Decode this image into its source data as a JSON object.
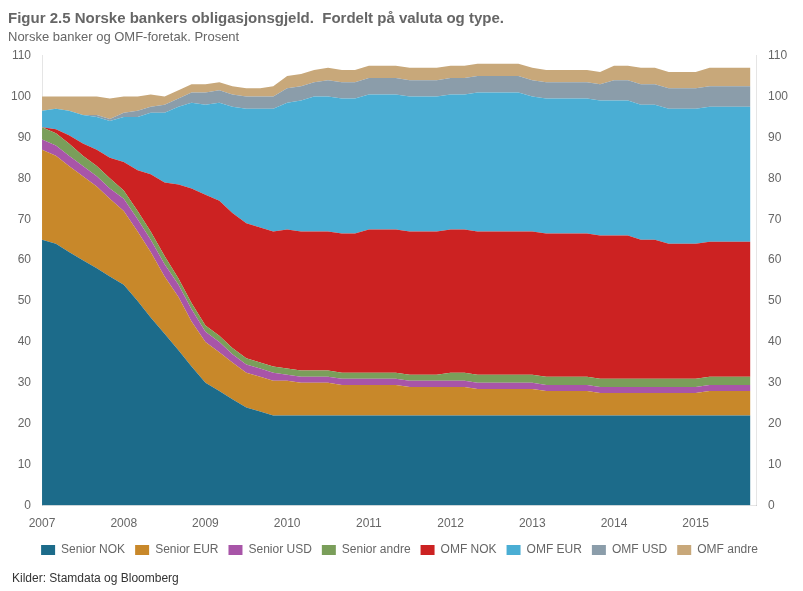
{
  "chart_data": {
    "type": "area",
    "stacked": true,
    "title": "Figur 2.5 Norske bankers obligasjonsgjeld.  Fordelt på valuta og type.",
    "subtitle": "Norske banker og OMF-foretak. Prosent",
    "annotations": [
      "Kilder: Stamdata og Bloomberg"
    ],
    "x": [
      2007.0,
      2007.17,
      2007.33,
      2007.5,
      2007.67,
      2007.83,
      2008.0,
      2008.17,
      2008.33,
      2008.5,
      2008.67,
      2008.83,
      2009.0,
      2009.17,
      2009.33,
      2009.5,
      2009.67,
      2009.83,
      2010.0,
      2010.17,
      2010.33,
      2010.5,
      2010.67,
      2010.83,
      2011.0,
      2011.17,
      2011.33,
      2011.5,
      2011.67,
      2011.83,
      2012.0,
      2012.17,
      2012.33,
      2012.5,
      2012.67,
      2012.83,
      2013.0,
      2013.17,
      2013.33,
      2013.5,
      2013.67,
      2013.83,
      2014.0,
      2014.17,
      2014.33,
      2014.5,
      2014.67,
      2014.83,
      2015.0,
      2015.17,
      2015.33,
      2015.5,
      2015.67
    ],
    "series": [
      {
        "name": "Senior NOK",
        "color": "#1c6b8a",
        "values": [
          65,
          64,
          62,
          60,
          58,
          56,
          54,
          50,
          46,
          42,
          38,
          34,
          30,
          28,
          26,
          24,
          23,
          22,
          22,
          22,
          22,
          22,
          22,
          22,
          22,
          22,
          22,
          22,
          22,
          22,
          22,
          22,
          22,
          22,
          22,
          22,
          22,
          22,
          22,
          22,
          22,
          22,
          22,
          22,
          22,
          22,
          22,
          22,
          22,
          22,
          22,
          22,
          22
        ]
      },
      {
        "name": "Senior EUR",
        "color": "#c8882a",
        "values": [
          22,
          21.5,
          21,
          20.5,
          20,
          19,
          18,
          17,
          16,
          14,
          13,
          11,
          10,
          9.5,
          9,
          8.5,
          8.5,
          8.5,
          8.5,
          8,
          8,
          8,
          7.5,
          7.5,
          7.5,
          7.5,
          7.5,
          7,
          7,
          7,
          7,
          7,
          6.5,
          6.5,
          6.5,
          6.5,
          6.5,
          6,
          6,
          6,
          6,
          5.5,
          5.5,
          5.5,
          5.5,
          5.5,
          5.5,
          5.5,
          5.5,
          6,
          6,
          6,
          6
        ]
      },
      {
        "name": "Senior USD",
        "color": "#a855a8",
        "values": [
          2.5,
          2.5,
          2.5,
          2.5,
          2.5,
          2.5,
          3,
          3,
          3,
          3,
          3,
          3,
          2.5,
          2.5,
          2,
          2,
          2,
          2,
          1.5,
          1.5,
          1.5,
          1.5,
          1.5,
          1.5,
          1.5,
          1.5,
          1.5,
          1.5,
          1.5,
          1.5,
          1.5,
          1.5,
          1.5,
          1.5,
          1.5,
          1.5,
          1.5,
          1.5,
          1.5,
          1.5,
          1.5,
          1.5,
          1.5,
          1.5,
          1.5,
          1.5,
          1.5,
          1.5,
          1.5,
          1.5,
          1.5,
          1.5,
          1.5
        ]
      },
      {
        "name": "Senior andre",
        "color": "#7a9e5a",
        "values": [
          3,
          3,
          3,
          2.5,
          2.5,
          2.5,
          2,
          2,
          2,
          2,
          1.5,
          1.5,
          1.5,
          1.5,
          1.5,
          1.5,
          1.5,
          1.5,
          1.5,
          1.5,
          1.5,
          1.5,
          1.5,
          1.5,
          1.5,
          1.5,
          1.5,
          1.5,
          1.5,
          1.5,
          2,
          2,
          2,
          2,
          2,
          2,
          2,
          2,
          2,
          2,
          2,
          2,
          2,
          2,
          2,
          2,
          2,
          2,
          2,
          2,
          2,
          2,
          2
        ]
      },
      {
        "name": "OMF NOK",
        "color": "#cc2222",
        "values": [
          0,
          1,
          2,
          3,
          4,
          5,
          7,
          10,
          14,
          18,
          23,
          28,
          32,
          33,
          33,
          33,
          33,
          33,
          34,
          34,
          34,
          34,
          34,
          34,
          35,
          35,
          35,
          35,
          35,
          35,
          35,
          35,
          35,
          35,
          35,
          35,
          35,
          35,
          35,
          35,
          35,
          35,
          35,
          35,
          34,
          34,
          33,
          33,
          33,
          33,
          33,
          33,
          33
        ]
      },
      {
        "name": "OMF EUR",
        "color": "#4aaed4",
        "values": [
          4,
          5,
          6,
          7,
          8,
          9,
          11,
          13,
          15,
          17,
          19,
          21,
          22,
          24,
          26,
          28,
          29,
          30,
          31,
          32,
          33,
          33,
          33,
          33,
          33,
          33,
          33,
          33,
          33,
          33,
          33,
          33,
          34,
          34,
          34,
          34,
          33,
          33,
          33,
          33,
          33,
          33,
          33,
          33,
          33,
          33,
          33,
          33,
          33,
          33,
          33,
          33,
          33
        ]
      },
      {
        "name": "OMF USD",
        "color": "#8b9daa",
        "values": [
          0,
          0,
          0,
          0,
          0.5,
          0.5,
          1,
          1.5,
          1.5,
          2,
          2,
          2.5,
          3,
          3,
          3,
          3,
          3,
          3,
          3.5,
          3.5,
          3.5,
          4,
          4,
          4,
          4,
          4,
          4,
          4,
          4,
          4,
          4,
          4,
          4,
          4,
          4,
          4,
          4,
          4,
          4,
          4,
          4,
          4,
          5,
          5,
          5,
          5,
          5,
          5,
          5,
          5,
          5,
          5,
          5
        ]
      },
      {
        "name": "OMF andre",
        "color": "#c8a87a",
        "values": [
          3.5,
          3,
          3.5,
          4.5,
          4.5,
          5,
          4,
          3.5,
          3,
          2,
          2,
          2,
          2,
          2,
          2,
          2,
          2,
          2.5,
          3,
          3,
          3,
          3,
          3,
          3,
          3,
          3,
          3,
          3,
          3,
          3,
          3,
          3,
          3,
          3,
          3,
          3,
          3,
          3,
          3,
          3,
          3,
          3,
          3.5,
          3.5,
          4,
          4,
          4,
          4,
          4,
          4.5,
          4.5,
          4.5,
          4.5
        ]
      }
    ],
    "xlim": [
      2007,
      2015.75
    ],
    "xticks": [
      2007,
      2008,
      2009,
      2010,
      2011,
      2012,
      2013,
      2014,
      2015
    ],
    "ylim": [
      0,
      110
    ],
    "yticks": [
      0,
      10,
      20,
      30,
      40,
      50,
      60,
      70,
      80,
      90,
      100,
      110
    ],
    "y2lim": [
      0,
      110
    ],
    "y2ticks": [
      0,
      10,
      20,
      30,
      40,
      50,
      60,
      70,
      80,
      90,
      100,
      110
    ],
    "grid": false,
    "legend": "bottom"
  }
}
